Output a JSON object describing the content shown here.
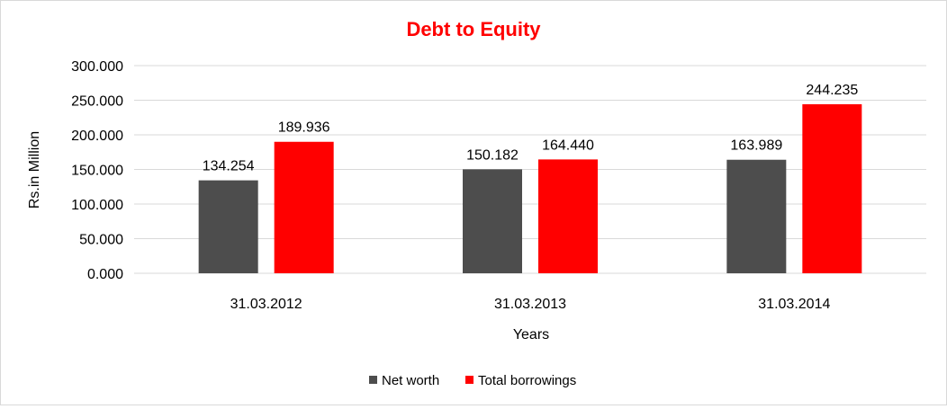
{
  "chart_data": {
    "type": "bar",
    "title": "Debt to Equity",
    "xlabel": "Years",
    "ylabel": "Rs.in Million",
    "categories": [
      "31.03.2012",
      "31.03.2013",
      "31.03.2014"
    ],
    "series": [
      {
        "name": "Net worth",
        "color": "#4d4d4d",
        "values": [
          134.254,
          150.182,
          163.989
        ],
        "labels": [
          "134.254",
          "150.182",
          "163.989"
        ]
      },
      {
        "name": "Total borrowings",
        "color": "#ff0000",
        "values": [
          189.936,
          164.44,
          244.235
        ],
        "labels": [
          "189.936",
          "164.440",
          "244.235"
        ]
      }
    ],
    "ylim": [
      0,
      300
    ],
    "yticks": [
      0,
      50,
      100,
      150,
      200,
      250,
      300
    ],
    "ytick_labels": [
      "0.000",
      "50.000",
      "100.000",
      "150.000",
      "200.000",
      "250.000",
      "300.000"
    ],
    "grid": true,
    "legend_position": "bottom",
    "title_color": "#ff0000"
  }
}
